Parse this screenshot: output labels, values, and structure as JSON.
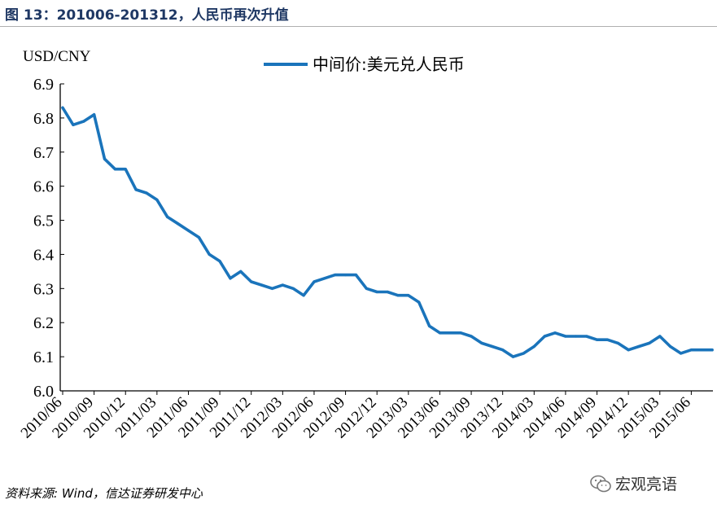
{
  "figure": {
    "title": "图 13：201006-201312，人民币再次升值",
    "source": "资料来源: Wind，信达证券研发中心",
    "watermark": "宏观亮语",
    "watermark_icon": "wechat-icon"
  },
  "chart_data": {
    "type": "line",
    "ylabel": "USD/CNY",
    "ylim": [
      6.0,
      6.9
    ],
    "y_ticks": [
      "6.0",
      "6.1",
      "6.2",
      "6.3",
      "6.4",
      "6.5",
      "6.6",
      "6.7",
      "6.8",
      "6.9"
    ],
    "x_ticks": [
      "2010/06",
      "2010/09",
      "2010/12",
      "2011/03",
      "2011/06",
      "2011/09",
      "2011/12",
      "2012/03",
      "2012/06",
      "2012/09",
      "2012/12",
      "2013/03",
      "2013/06",
      "2013/09",
      "2013/12",
      "2014/03",
      "2014/06",
      "2014/09",
      "2014/12",
      "2015/03",
      "2015/06"
    ],
    "xlim": [
      "2010/06",
      "2015/08"
    ],
    "grid": false,
    "legend_position": "top-center",
    "line_color": "#1a74bb",
    "series": [
      {
        "name": "中间价:美元兑人民币",
        "points": [
          [
            "2010/06",
            6.83
          ],
          [
            "2010/07",
            6.78
          ],
          [
            "2010/08",
            6.79
          ],
          [
            "2010/09",
            6.81
          ],
          [
            "2010/10",
            6.68
          ],
          [
            "2010/11",
            6.65
          ],
          [
            "2010/12",
            6.65
          ],
          [
            "2011/01",
            6.59
          ],
          [
            "2011/02",
            6.58
          ],
          [
            "2011/03",
            6.56
          ],
          [
            "2011/04",
            6.51
          ],
          [
            "2011/05",
            6.49
          ],
          [
            "2011/06",
            6.47
          ],
          [
            "2011/07",
            6.45
          ],
          [
            "2011/08",
            6.4
          ],
          [
            "2011/09",
            6.38
          ],
          [
            "2011/10",
            6.33
          ],
          [
            "2011/11",
            6.35
          ],
          [
            "2011/12",
            6.32
          ],
          [
            "2012/01",
            6.31
          ],
          [
            "2012/02",
            6.3
          ],
          [
            "2012/03",
            6.31
          ],
          [
            "2012/04",
            6.3
          ],
          [
            "2012/05",
            6.28
          ],
          [
            "2012/06",
            6.32
          ],
          [
            "2012/07",
            6.33
          ],
          [
            "2012/08",
            6.34
          ],
          [
            "2012/09",
            6.34
          ],
          [
            "2012/10",
            6.34
          ],
          [
            "2012/11",
            6.3
          ],
          [
            "2012/12",
            6.29
          ],
          [
            "2013/01",
            6.29
          ],
          [
            "2013/02",
            6.28
          ],
          [
            "2013/03",
            6.28
          ],
          [
            "2013/04",
            6.26
          ],
          [
            "2013/05",
            6.19
          ],
          [
            "2013/06",
            6.17
          ],
          [
            "2013/07",
            6.17
          ],
          [
            "2013/08",
            6.17
          ],
          [
            "2013/09",
            6.16
          ],
          [
            "2013/10",
            6.14
          ],
          [
            "2013/11",
            6.13
          ],
          [
            "2013/12",
            6.12
          ],
          [
            "2014/01",
            6.1
          ],
          [
            "2014/02",
            6.11
          ],
          [
            "2014/03",
            6.13
          ],
          [
            "2014/04",
            6.16
          ],
          [
            "2014/05",
            6.17
          ],
          [
            "2014/06",
            6.16
          ],
          [
            "2014/07",
            6.16
          ],
          [
            "2014/08",
            6.16
          ],
          [
            "2014/09",
            6.15
          ],
          [
            "2014/10",
            6.15
          ],
          [
            "2014/11",
            6.14
          ],
          [
            "2014/12",
            6.12
          ],
          [
            "2015/01",
            6.13
          ],
          [
            "2015/02",
            6.14
          ],
          [
            "2015/03",
            6.16
          ],
          [
            "2015/04",
            6.13
          ],
          [
            "2015/05",
            6.11
          ],
          [
            "2015/06",
            6.12
          ],
          [
            "2015/07",
            6.12
          ],
          [
            "2015/08",
            6.12
          ]
        ]
      }
    ]
  }
}
